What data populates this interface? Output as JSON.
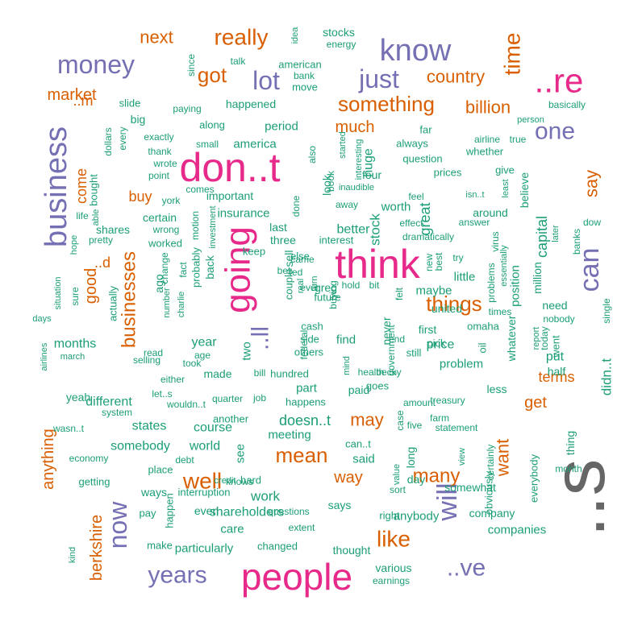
{
  "colors": {
    "pink": "#e7298a",
    "purple": "#7570b3",
    "orange": "#d95f02",
    "green": "#1b9e77",
    "gray": "#666666"
  },
  "words": [
    {
      "text": "..s",
      "color": "gray"
    },
    {
      "text": "don..t",
      "color": "pink"
    },
    {
      "text": "think",
      "color": "pink"
    },
    {
      "text": "people",
      "color": "pink"
    },
    {
      "text": "going",
      "color": "pink"
    },
    {
      "text": "..re",
      "color": "pink"
    },
    {
      "text": "business",
      "color": "purple"
    },
    {
      "text": "know",
      "color": "purple"
    },
    {
      "text": "money",
      "color": "purple"
    },
    {
      "text": "can",
      "color": "purple"
    },
    {
      "text": "just",
      "color": "purple"
    },
    {
      "text": "lot",
      "color": "purple"
    },
    {
      "text": "one",
      "color": "purple"
    },
    {
      "text": "will",
      "color": "purple"
    },
    {
      "text": "now",
      "color": "purple"
    },
    {
      "text": "years",
      "color": "purple"
    },
    {
      "text": "..ve",
      "color": "purple"
    },
    {
      "text": "..ll",
      "color": "purple"
    },
    {
      "text": "really",
      "color": "orange"
    },
    {
      "text": "time",
      "color": "orange"
    },
    {
      "text": "something",
      "color": "orange"
    },
    {
      "text": "got",
      "color": "orange"
    },
    {
      "text": "country",
      "color": "orange"
    },
    {
      "text": "next",
      "color": "orange"
    },
    {
      "text": "billion",
      "color": "orange"
    },
    {
      "text": "market",
      "color": "orange"
    },
    {
      "text": "much",
      "color": "orange"
    },
    {
      "text": "businesses",
      "color": "orange"
    },
    {
      "text": "mean",
      "color": "orange"
    },
    {
      "text": "well",
      "color": "orange"
    },
    {
      "text": "like",
      "color": "orange"
    },
    {
      "text": "things",
      "color": "orange"
    },
    {
      "text": "berkshire",
      "color": "orange"
    },
    {
      "text": "say",
      "color": "orange"
    },
    {
      "text": "may",
      "color": "orange"
    },
    {
      "text": "many",
      "color": "orange"
    },
    {
      "text": "want",
      "color": "orange"
    },
    {
      "text": "way",
      "color": "orange"
    },
    {
      "text": "get",
      "color": "orange"
    },
    {
      "text": "terms",
      "color": "orange"
    },
    {
      "text": "buy",
      "color": "orange"
    },
    {
      "text": "good",
      "color": "orange"
    },
    {
      "text": "come",
      "color": "orange"
    },
    {
      "text": "anything",
      "color": "orange"
    },
    {
      "text": "..d",
      "color": "orange"
    },
    {
      "text": "..m",
      "color": "orange"
    },
    {
      "text": "better",
      "color": "green"
    },
    {
      "text": "stocks",
      "color": "green"
    },
    {
      "text": "energy",
      "color": "green"
    },
    {
      "text": "american",
      "color": "green"
    },
    {
      "text": "bank",
      "color": "green"
    },
    {
      "text": "move",
      "color": "green"
    },
    {
      "text": "talk",
      "color": "green"
    },
    {
      "text": "idea",
      "color": "green"
    },
    {
      "text": "since",
      "color": "green"
    },
    {
      "text": "slide",
      "color": "green"
    },
    {
      "text": "big",
      "color": "green"
    },
    {
      "text": "paying",
      "color": "green"
    },
    {
      "text": "happened",
      "color": "green"
    },
    {
      "text": "basically",
      "color": "green"
    },
    {
      "text": "person",
      "color": "green"
    },
    {
      "text": "airline",
      "color": "green"
    },
    {
      "text": "true",
      "color": "green"
    },
    {
      "text": "far",
      "color": "green"
    },
    {
      "text": "always",
      "color": "green"
    },
    {
      "text": "whether",
      "color": "green"
    },
    {
      "text": "question",
      "color": "green"
    },
    {
      "text": "prices",
      "color": "green"
    },
    {
      "text": "give",
      "color": "green"
    },
    {
      "text": "four",
      "color": "green"
    },
    {
      "text": "period",
      "color": "green"
    },
    {
      "text": "along",
      "color": "green"
    },
    {
      "text": "america",
      "color": "green"
    },
    {
      "text": "exactly",
      "color": "green"
    },
    {
      "text": "small",
      "color": "green"
    },
    {
      "text": "thank",
      "color": "green"
    },
    {
      "text": "wrote",
      "color": "green"
    },
    {
      "text": "point",
      "color": "green"
    },
    {
      "text": "dollars",
      "color": "green"
    },
    {
      "text": "every",
      "color": "green"
    },
    {
      "text": "bought",
      "color": "green"
    },
    {
      "text": "able",
      "color": "green"
    },
    {
      "text": "life",
      "color": "green"
    },
    {
      "text": "comes",
      "color": "green"
    },
    {
      "text": "york",
      "color": "green"
    },
    {
      "text": "important",
      "color": "green"
    },
    {
      "text": "certain",
      "color": "green"
    },
    {
      "text": "insurance",
      "color": "green"
    },
    {
      "text": "shares",
      "color": "green"
    },
    {
      "text": "wrong",
      "color": "green"
    },
    {
      "text": "pretty",
      "color": "green"
    },
    {
      "text": "hope",
      "color": "green"
    },
    {
      "text": "worked",
      "color": "green"
    },
    {
      "text": "motion",
      "color": "green"
    },
    {
      "text": "investment",
      "color": "green"
    },
    {
      "text": "probably",
      "color": "green"
    },
    {
      "text": "fact",
      "color": "green"
    },
    {
      "text": "change",
      "color": "green"
    },
    {
      "text": "ago",
      "color": "green"
    },
    {
      "text": "actually",
      "color": "green"
    },
    {
      "text": "charlie",
      "color": "green"
    },
    {
      "text": "number",
      "color": "green"
    },
    {
      "text": "situation",
      "color": "green"
    },
    {
      "text": "sure",
      "color": "green"
    },
    {
      "text": "back",
      "color": "green"
    },
    {
      "text": "last",
      "color": "green"
    },
    {
      "text": "three",
      "color": "green"
    },
    {
      "text": "keep",
      "color": "green"
    },
    {
      "text": "else",
      "color": "green"
    },
    {
      "text": "interest",
      "color": "green"
    },
    {
      "text": "done",
      "color": "green"
    },
    {
      "text": "look",
      "color": "green"
    },
    {
      "text": "also",
      "color": "green"
    },
    {
      "text": "book",
      "color": "green"
    },
    {
      "text": "started",
      "color": "green"
    },
    {
      "text": "interesting",
      "color": "green"
    },
    {
      "text": "inaudible",
      "color": "green"
    },
    {
      "text": "away",
      "color": "green"
    },
    {
      "text": "huge",
      "color": "green"
    },
    {
      "text": "stock",
      "color": "green"
    },
    {
      "text": "worth",
      "color": "green"
    },
    {
      "text": "great",
      "color": "green"
    },
    {
      "text": "feel",
      "color": "green"
    },
    {
      "text": "effect",
      "color": "green"
    },
    {
      "text": "isn..t",
      "color": "green"
    },
    {
      "text": "least",
      "color": "green"
    },
    {
      "text": "answer",
      "color": "green"
    },
    {
      "text": "around",
      "color": "green"
    },
    {
      "text": "believe",
      "color": "green"
    },
    {
      "text": "capital",
      "color": "green"
    },
    {
      "text": "later",
      "color": "green"
    },
    {
      "text": "banks",
      "color": "green"
    },
    {
      "text": "dow",
      "color": "green"
    },
    {
      "text": "dramatically",
      "color": "green"
    },
    {
      "text": "couple",
      "color": "green"
    },
    {
      "text": "sell",
      "color": "green"
    },
    {
      "text": "bet",
      "color": "green"
    },
    {
      "text": "fed",
      "color": "green"
    },
    {
      "text": "real",
      "color": "green"
    },
    {
      "text": "came",
      "color": "green"
    },
    {
      "text": "turn",
      "color": "green"
    },
    {
      "text": "future",
      "color": "green"
    },
    {
      "text": "hold",
      "color": "green"
    },
    {
      "text": "bit",
      "color": "green"
    },
    {
      "text": "new",
      "color": "green"
    },
    {
      "text": "felt",
      "color": "green"
    },
    {
      "text": "best",
      "color": "green"
    },
    {
      "text": "try",
      "color": "green"
    },
    {
      "text": "little",
      "color": "green"
    },
    {
      "text": "maybe",
      "color": "green"
    },
    {
      "text": "virus",
      "color": "green"
    },
    {
      "text": "essentially",
      "color": "green"
    },
    {
      "text": "million",
      "color": "green"
    },
    {
      "text": "position",
      "color": "green"
    },
    {
      "text": "problems",
      "color": "green"
    },
    {
      "text": "greg",
      "color": "green"
    },
    {
      "text": "united",
      "color": "green"
    },
    {
      "text": "first",
      "color": "green"
    },
    {
      "text": "never",
      "color": "green"
    },
    {
      "text": "buying",
      "color": "green"
    },
    {
      "text": "ever",
      "color": "green"
    },
    {
      "text": "cash",
      "color": "green"
    },
    {
      "text": "side",
      "color": "green"
    },
    {
      "text": "others",
      "color": "green"
    },
    {
      "text": "federal",
      "color": "green"
    },
    {
      "text": "end",
      "color": "green"
    },
    {
      "text": "government",
      "color": "green"
    },
    {
      "text": "times",
      "color": "green"
    },
    {
      "text": "need",
      "color": "green"
    },
    {
      "text": "nobody",
      "color": "green"
    },
    {
      "text": "single",
      "color": "green"
    },
    {
      "text": "report",
      "color": "green"
    },
    {
      "text": "today",
      "color": "green"
    },
    {
      "text": "went",
      "color": "green"
    },
    {
      "text": "put",
      "color": "green"
    },
    {
      "text": "half",
      "color": "green"
    },
    {
      "text": "pick",
      "color": "green"
    },
    {
      "text": "omaha",
      "color": "green"
    },
    {
      "text": "still",
      "color": "green"
    },
    {
      "text": "oil",
      "color": "green"
    },
    {
      "text": "whatever",
      "color": "green"
    },
    {
      "text": "year",
      "color": "green"
    },
    {
      "text": "months",
      "color": "green"
    },
    {
      "text": "days",
      "color": "green"
    },
    {
      "text": "airlines",
      "color": "green"
    },
    {
      "text": "march",
      "color": "green"
    },
    {
      "text": "read",
      "color": "green"
    },
    {
      "text": "selling",
      "color": "green"
    },
    {
      "text": "took",
      "color": "green"
    },
    {
      "text": "age",
      "color": "green"
    },
    {
      "text": "two",
      "color": "green"
    },
    {
      "text": "either",
      "color": "green"
    },
    {
      "text": "made",
      "color": "green"
    },
    {
      "text": "bill",
      "color": "green"
    },
    {
      "text": "hundred",
      "color": "green"
    },
    {
      "text": "mind",
      "color": "green"
    },
    {
      "text": "health",
      "color": "green"
    },
    {
      "text": "becky",
      "color": "green"
    },
    {
      "text": "find",
      "color": "green"
    },
    {
      "text": "part",
      "color": "green"
    },
    {
      "text": "paid",
      "color": "green"
    },
    {
      "text": "goes",
      "color": "green"
    },
    {
      "text": "price",
      "color": "green"
    },
    {
      "text": "problem",
      "color": "green"
    },
    {
      "text": "less",
      "color": "green"
    },
    {
      "text": "didn..t",
      "color": "green"
    },
    {
      "text": "yeah",
      "color": "green"
    },
    {
      "text": "different",
      "color": "green"
    },
    {
      "text": "let..s",
      "color": "green"
    },
    {
      "text": "wouldn..t",
      "color": "green"
    },
    {
      "text": "quarter",
      "color": "green"
    },
    {
      "text": "job",
      "color": "green"
    },
    {
      "text": "happens",
      "color": "green"
    },
    {
      "text": "amount",
      "color": "green"
    },
    {
      "text": "treasury",
      "color": "green"
    },
    {
      "text": "system",
      "color": "green"
    },
    {
      "text": "wasn..t",
      "color": "green"
    },
    {
      "text": "states",
      "color": "green"
    },
    {
      "text": "course",
      "color": "green"
    },
    {
      "text": "another",
      "color": "green"
    },
    {
      "text": "doesn..t",
      "color": "green"
    },
    {
      "text": "case",
      "color": "green"
    },
    {
      "text": "five",
      "color": "green"
    },
    {
      "text": "farm",
      "color": "green"
    },
    {
      "text": "statement",
      "color": "green"
    },
    {
      "text": "thing",
      "color": "green"
    },
    {
      "text": "somebody",
      "color": "green"
    },
    {
      "text": "world",
      "color": "green"
    },
    {
      "text": "see",
      "color": "green"
    },
    {
      "text": "meeting",
      "color": "green"
    },
    {
      "text": "can..t",
      "color": "green"
    },
    {
      "text": "said",
      "color": "green"
    },
    {
      "text": "long",
      "color": "green"
    },
    {
      "text": "value",
      "color": "green"
    },
    {
      "text": "view",
      "color": "green"
    },
    {
      "text": "certainly",
      "color": "green"
    },
    {
      "text": "month",
      "color": "green"
    },
    {
      "text": "economy",
      "color": "green"
    },
    {
      "text": "debt",
      "color": "green"
    },
    {
      "text": "credit",
      "color": "green"
    },
    {
      "text": "knows",
      "color": "green"
    },
    {
      "text": "place",
      "color": "green"
    },
    {
      "text": "day",
      "color": "green"
    },
    {
      "text": "obviously",
      "color": "green"
    },
    {
      "text": "everybody",
      "color": "green"
    },
    {
      "text": "getting",
      "color": "green"
    },
    {
      "text": "ways",
      "color": "green"
    },
    {
      "text": "interruption",
      "color": "green"
    },
    {
      "text": "hard",
      "color": "green"
    },
    {
      "text": "sort",
      "color": "green"
    },
    {
      "text": "somewhat",
      "color": "green"
    },
    {
      "text": "kind",
      "color": "green"
    },
    {
      "text": "pay",
      "color": "green"
    },
    {
      "text": "happen",
      "color": "green"
    },
    {
      "text": "work",
      "color": "green"
    },
    {
      "text": "even",
      "color": "green"
    },
    {
      "text": "shareholders",
      "color": "green"
    },
    {
      "text": "says",
      "color": "green"
    },
    {
      "text": "right",
      "color": "green"
    },
    {
      "text": "anybody",
      "color": "green"
    },
    {
      "text": "company",
      "color": "green"
    },
    {
      "text": "companies",
      "color": "green"
    },
    {
      "text": "care",
      "color": "green"
    },
    {
      "text": "questions",
      "color": "green"
    },
    {
      "text": "extent",
      "color": "green"
    },
    {
      "text": "make",
      "color": "green"
    },
    {
      "text": "particularly",
      "color": "green"
    },
    {
      "text": "changed",
      "color": "green"
    },
    {
      "text": "thought",
      "color": "green"
    },
    {
      "text": "various",
      "color": "green"
    },
    {
      "text": "earnings",
      "color": "green"
    }
  ]
}
